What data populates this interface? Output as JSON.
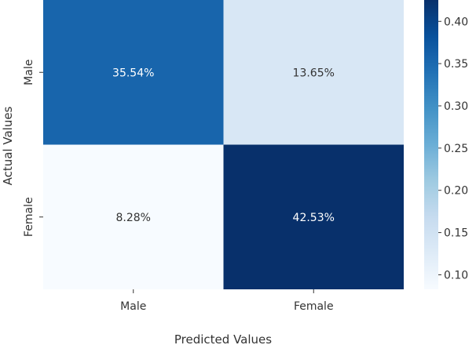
{
  "chart_data": {
    "type": "heatmap",
    "title": "",
    "xlabel": "Predicted Values",
    "ylabel": "Actual Values",
    "x_categories": [
      "Male",
      "Female"
    ],
    "y_categories": [
      "Male",
      "Female"
    ],
    "cell_labels": [
      [
        "35.54%",
        "13.65%"
      ],
      [
        "8.28%",
        "42.53%"
      ]
    ],
    "values": [
      [
        0.3554,
        0.1365
      ],
      [
        0.0828,
        0.4253
      ]
    ],
    "colormap": "Blues",
    "colorbar": {
      "range": [
        0.0828,
        0.4253
      ],
      "ticks": [
        0.1,
        0.15,
        0.2,
        0.25,
        0.3,
        0.35,
        0.4
      ],
      "tick_labels": [
        "0.10",
        "0.15",
        "0.20",
        "0.25",
        "0.30",
        "0.35",
        "0.40"
      ]
    },
    "colors": {
      "low": "#f7fbff",
      "high": "#08306b",
      "text_dark": "#333333",
      "text_light": "#ffffff"
    }
  }
}
